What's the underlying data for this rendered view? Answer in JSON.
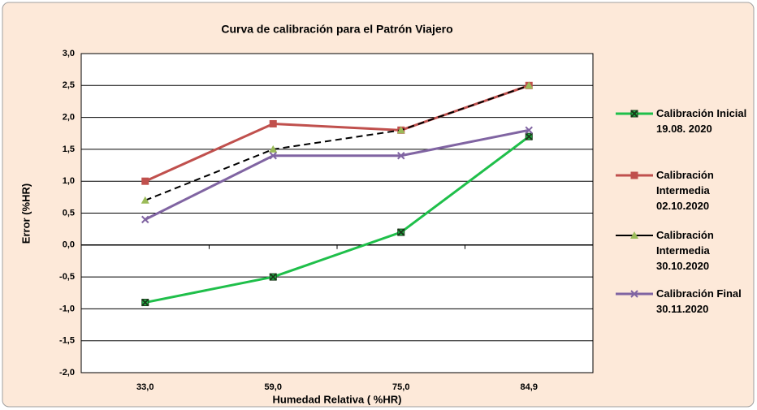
{
  "chart_data": {
    "type": "line",
    "title": "Curva de calibración  para el Patrón Viajero",
    "x_label": "Humedad Relativa ( %HR)",
    "y_label": "Error (%HR)",
    "categories": [
      "33,0",
      "59,0",
      "75,0",
      "84,9"
    ],
    "ylim": [
      -2.0,
      3.0
    ],
    "yticks": [
      {
        "value": -2.0,
        "label": "-2,0"
      },
      {
        "value": -1.5,
        "label": "-1,5"
      },
      {
        "value": -1.0,
        "label": "-1,0"
      },
      {
        "value": -0.5,
        "label": "-0,5"
      },
      {
        "value": 0.0,
        "label": "0,0"
      },
      {
        "value": 0.5,
        "label": "0,5"
      },
      {
        "value": 1.0,
        "label": "1,0"
      },
      {
        "value": 1.5,
        "label": "1,5"
      },
      {
        "value": 2.0,
        "label": "2,0"
      },
      {
        "value": 2.5,
        "label": "2,5"
      },
      {
        "value": 3.0,
        "label": "3,0"
      }
    ],
    "grid": true,
    "legend": "right",
    "series": [
      {
        "name": "Calibración Inicial 19.08. 2020",
        "color": "#1fbf4a",
        "marker": "xsquare",
        "marker_color": "#1a3a1a",
        "dashed": false,
        "values": [
          -0.9,
          -0.5,
          0.2,
          1.7
        ]
      },
      {
        "name": "Calibración Intermedia 02.10.2020",
        "color": "#c0504d",
        "marker": "square",
        "marker_color": "#c0504d",
        "dashed": false,
        "values": [
          1.0,
          1.9,
          1.8,
          2.5
        ]
      },
      {
        "name": "Calibración Intermedia 30.10.2020",
        "color": "#000000",
        "marker": "triangle",
        "marker_color": "#9bbb59",
        "dashed": true,
        "values": [
          0.7,
          1.5,
          1.8,
          2.5
        ]
      },
      {
        "name": "Calibración Final 30.11.2020",
        "color": "#8064a2",
        "marker": "x",
        "marker_color": "#8064a2",
        "dashed": false,
        "values": [
          0.4,
          1.4,
          1.4,
          1.8
        ]
      }
    ]
  }
}
